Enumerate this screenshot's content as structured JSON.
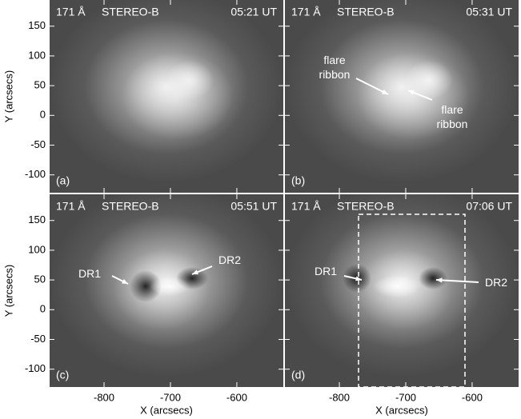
{
  "axes": {
    "x_label": "X (arcsecs)",
    "y_label": "Y (arcsecs)",
    "xlim": [
      -882,
      -530
    ],
    "ylim": [
      -130,
      194
    ],
    "xticks": [
      -800,
      -700,
      -600
    ],
    "yticks": [
      -100,
      -50,
      0,
      50,
      100,
      150
    ]
  },
  "panels": [
    {
      "label": "(a)",
      "wavelength": "171 Å",
      "instrument": "STEREO-B",
      "time": "05:21 UT",
      "annotations": []
    },
    {
      "label": "(b)",
      "wavelength": "171 Å",
      "instrument": "STEREO-B",
      "time": "05:31 UT",
      "annotations": [
        {
          "lines": [
            "flare",
            "ribbon"
          ]
        },
        {
          "lines": [
            "flare",
            "ribbon"
          ]
        }
      ]
    },
    {
      "label": "(c)",
      "wavelength": "171 Å",
      "instrument": "STEREO-B",
      "time": "05:51 UT",
      "annotations": [
        {
          "lines": [
            "DR1"
          ]
        },
        {
          "lines": [
            "DR2"
          ]
        }
      ]
    },
    {
      "label": "(d)",
      "wavelength": "171 Å",
      "instrument": "STEREO-B",
      "time": "07:06 UT",
      "annotations": [
        {
          "lines": [
            "DR1"
          ]
        },
        {
          "lines": [
            "DR2"
          ]
        }
      ]
    }
  ]
}
